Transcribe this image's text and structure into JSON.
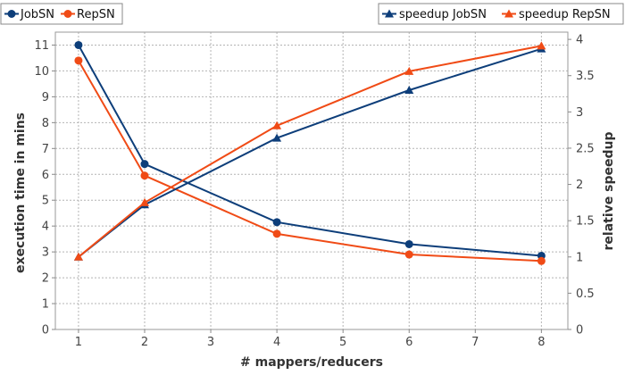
{
  "chart_data": {
    "type": "line",
    "x": [
      1,
      2,
      4,
      6,
      8
    ],
    "xlabel": "# mappers/reducers",
    "x_ticks": [
      1,
      2,
      3,
      4,
      5,
      6,
      7,
      8
    ],
    "xlim": [
      0.65,
      8.4
    ],
    "y_left": {
      "label": "execution time in mins",
      "range": [
        0,
        11.5
      ],
      "ticks": [
        0,
        1,
        2,
        3,
        4,
        5,
        6,
        7,
        8,
        9,
        10,
        11
      ]
    },
    "y_right": {
      "label": "relative speedup",
      "range": [
        0,
        4.1
      ],
      "ticks": [
        "0",
        "0.5",
        "1",
        "1.5",
        "2",
        "2.5",
        "3",
        "3.5",
        "4"
      ]
    },
    "grid": true,
    "legends": {
      "left": [
        "JobSN",
        "RepSN"
      ],
      "right": [
        "speedup JobSN",
        "speedup RepSN"
      ]
    },
    "series": [
      {
        "name": "JobSN",
        "axis": "left",
        "marker": "circle",
        "color": "#0d3e7a",
        "values": [
          11.0,
          6.4,
          4.15,
          3.3,
          2.85
        ]
      },
      {
        "name": "RepSN",
        "axis": "left",
        "marker": "circle",
        "color": "#f04b16",
        "values": [
          10.4,
          5.95,
          3.7,
          2.9,
          2.65
        ]
      },
      {
        "name": "speedup JobSN",
        "axis": "right",
        "marker": "triangle",
        "color": "#0d3e7a",
        "values": [
          1.0,
          1.72,
          2.64,
          3.3,
          3.87
        ]
      },
      {
        "name": "speedup RepSN",
        "axis": "right",
        "marker": "triangle",
        "color": "#f04b16",
        "values": [
          1.0,
          1.75,
          2.81,
          3.56,
          3.91
        ]
      }
    ]
  }
}
